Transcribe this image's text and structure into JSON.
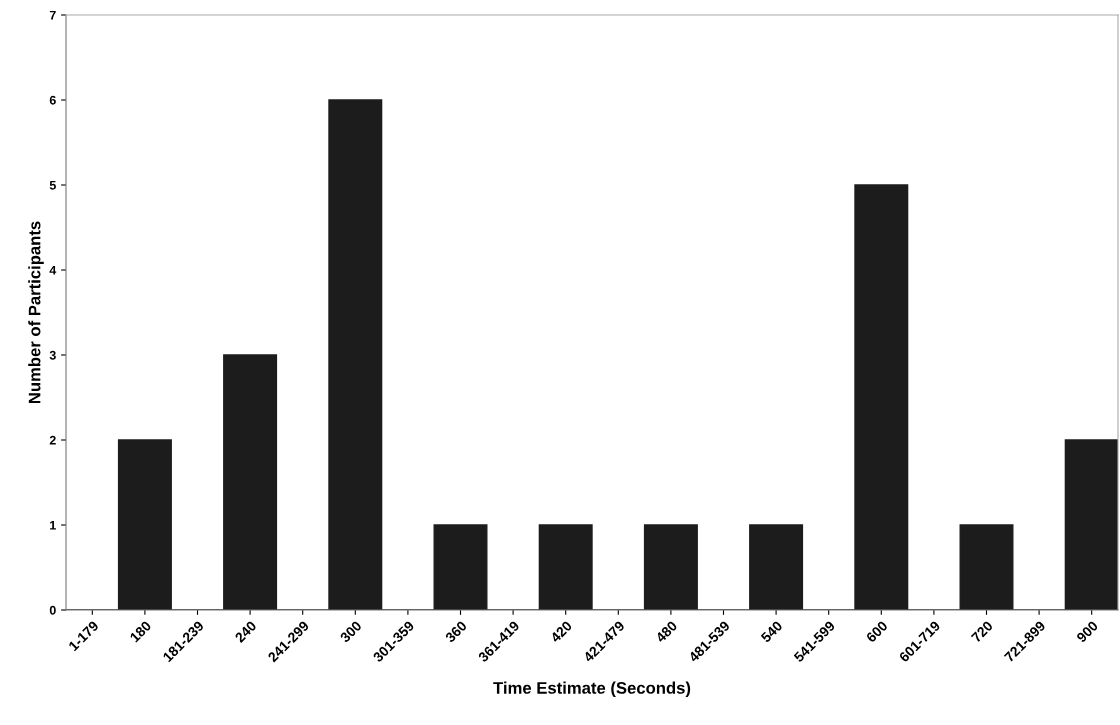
{
  "chart_data": {
    "type": "bar",
    "xlabel": "Time Estimate (Seconds)",
    "ylabel": "Number of Participants",
    "categories": [
      "1-179",
      "180",
      "181-239",
      "240",
      "241-299",
      "300",
      "301-359",
      "360",
      "361-419",
      "420",
      "421-479",
      "480",
      "481-539",
      "540",
      "541-599",
      "600",
      "601-719",
      "720",
      "721-899",
      "900"
    ],
    "values": [
      0,
      2,
      0,
      3,
      0,
      6,
      0,
      1,
      0,
      1,
      0,
      1,
      0,
      1,
      0,
      5,
      0,
      1,
      0,
      2
    ],
    "color": "#1c1c1c",
    "ylim": [
      0,
      7
    ],
    "yticks": [
      0,
      1,
      2,
      3,
      4,
      5,
      6,
      7
    ],
    "grid": false,
    "legend": false
  }
}
